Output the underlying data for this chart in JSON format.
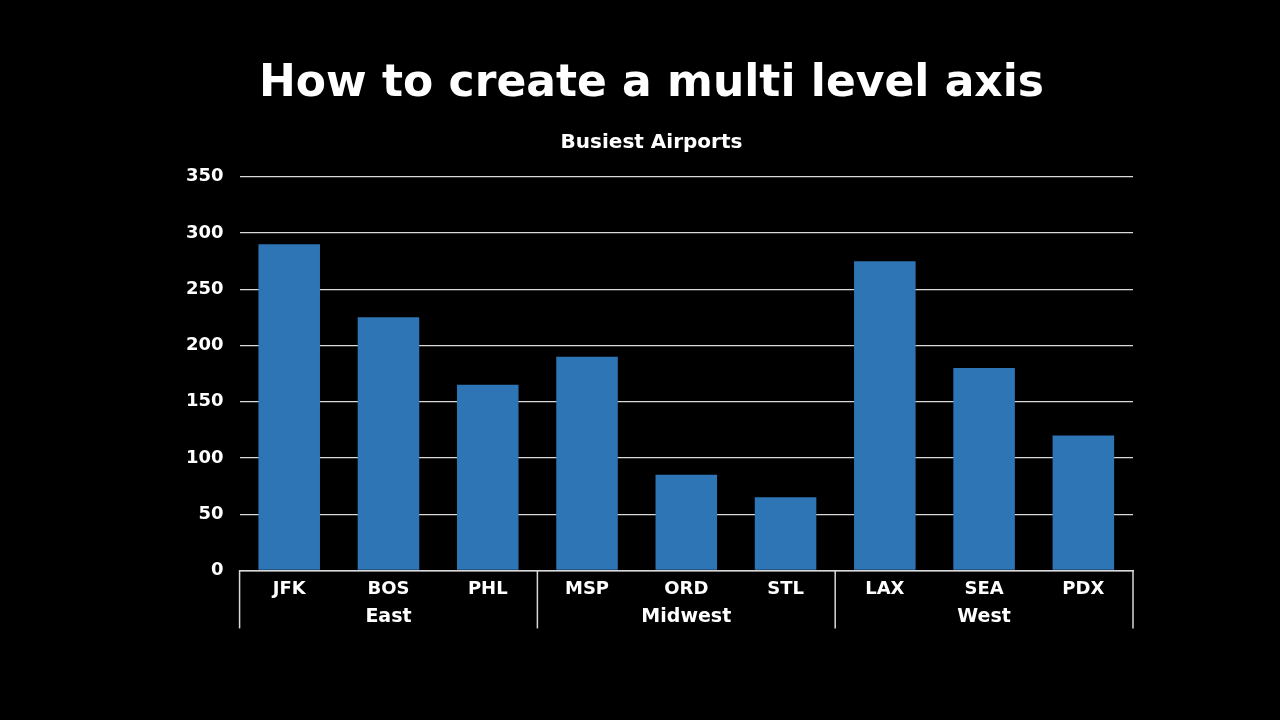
{
  "chart_data": {
    "type": "bar",
    "title": "How to create a multi level axis",
    "subtitle": "Busiest Airports",
    "categories": [
      "JFK",
      "BOS",
      "PHL",
      "MSP",
      "ORD",
      "STL",
      "LAX",
      "SEA",
      "PDX"
    ],
    "values": [
      290,
      225,
      165,
      190,
      85,
      65,
      275,
      180,
      120
    ],
    "color": "#2e75b6",
    "ylim": [
      0,
      350
    ],
    "yticks": [
      0,
      50,
      100,
      150,
      200,
      250,
      300,
      350
    ],
    "grid": "y",
    "legend": false,
    "annotations": [
      "East",
      "Midwest",
      "West"
    ]
  }
}
